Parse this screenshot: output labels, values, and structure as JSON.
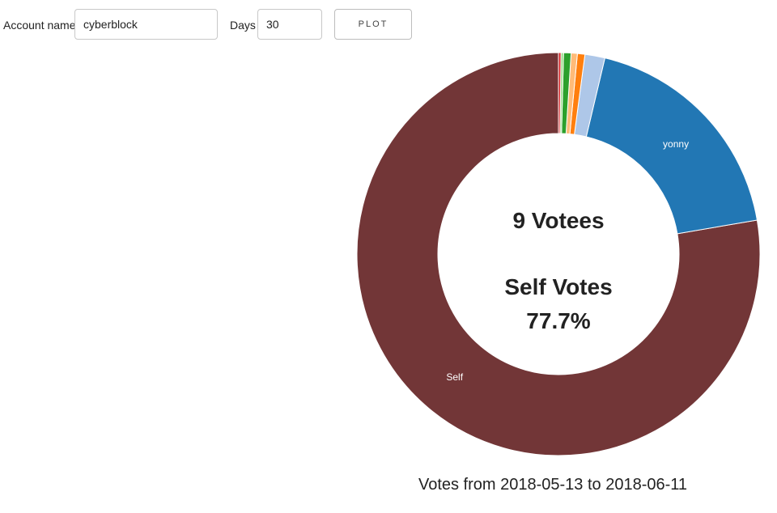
{
  "form": {
    "account_label": "Account name",
    "account_value": "cyberblock",
    "days_label": "Days",
    "days_value": "30",
    "plot_button": "PLOT"
  },
  "chart_data": {
    "type": "pie",
    "donut": true,
    "center_lines": [
      "9 Votees",
      "Self Votes",
      "77.7%"
    ],
    "caption": "Votes from 2018-05-13 to 2018-06-11",
    "slices": [
      {
        "label": "Self",
        "value": 77.7,
        "color": "#723637",
        "show_label": true
      },
      {
        "label": "yonny",
        "value": 18.6,
        "color": "#2277b4",
        "show_label": true
      },
      {
        "label": "",
        "value": 1.6,
        "color": "#aec7e8",
        "show_label": false
      },
      {
        "label": "",
        "value": 0.6,
        "color": "#ff7f0e",
        "show_label": false
      },
      {
        "label": "",
        "value": 0.5,
        "color": "#ffbb78",
        "show_label": false
      },
      {
        "label": "",
        "value": 0.6,
        "color": "#2ca02c",
        "show_label": false
      },
      {
        "label": "",
        "value": 0.2,
        "color": "#98df8a",
        "show_label": false
      },
      {
        "label": "",
        "value": 0.2,
        "color": "#d62728",
        "show_label": false
      }
    ]
  }
}
